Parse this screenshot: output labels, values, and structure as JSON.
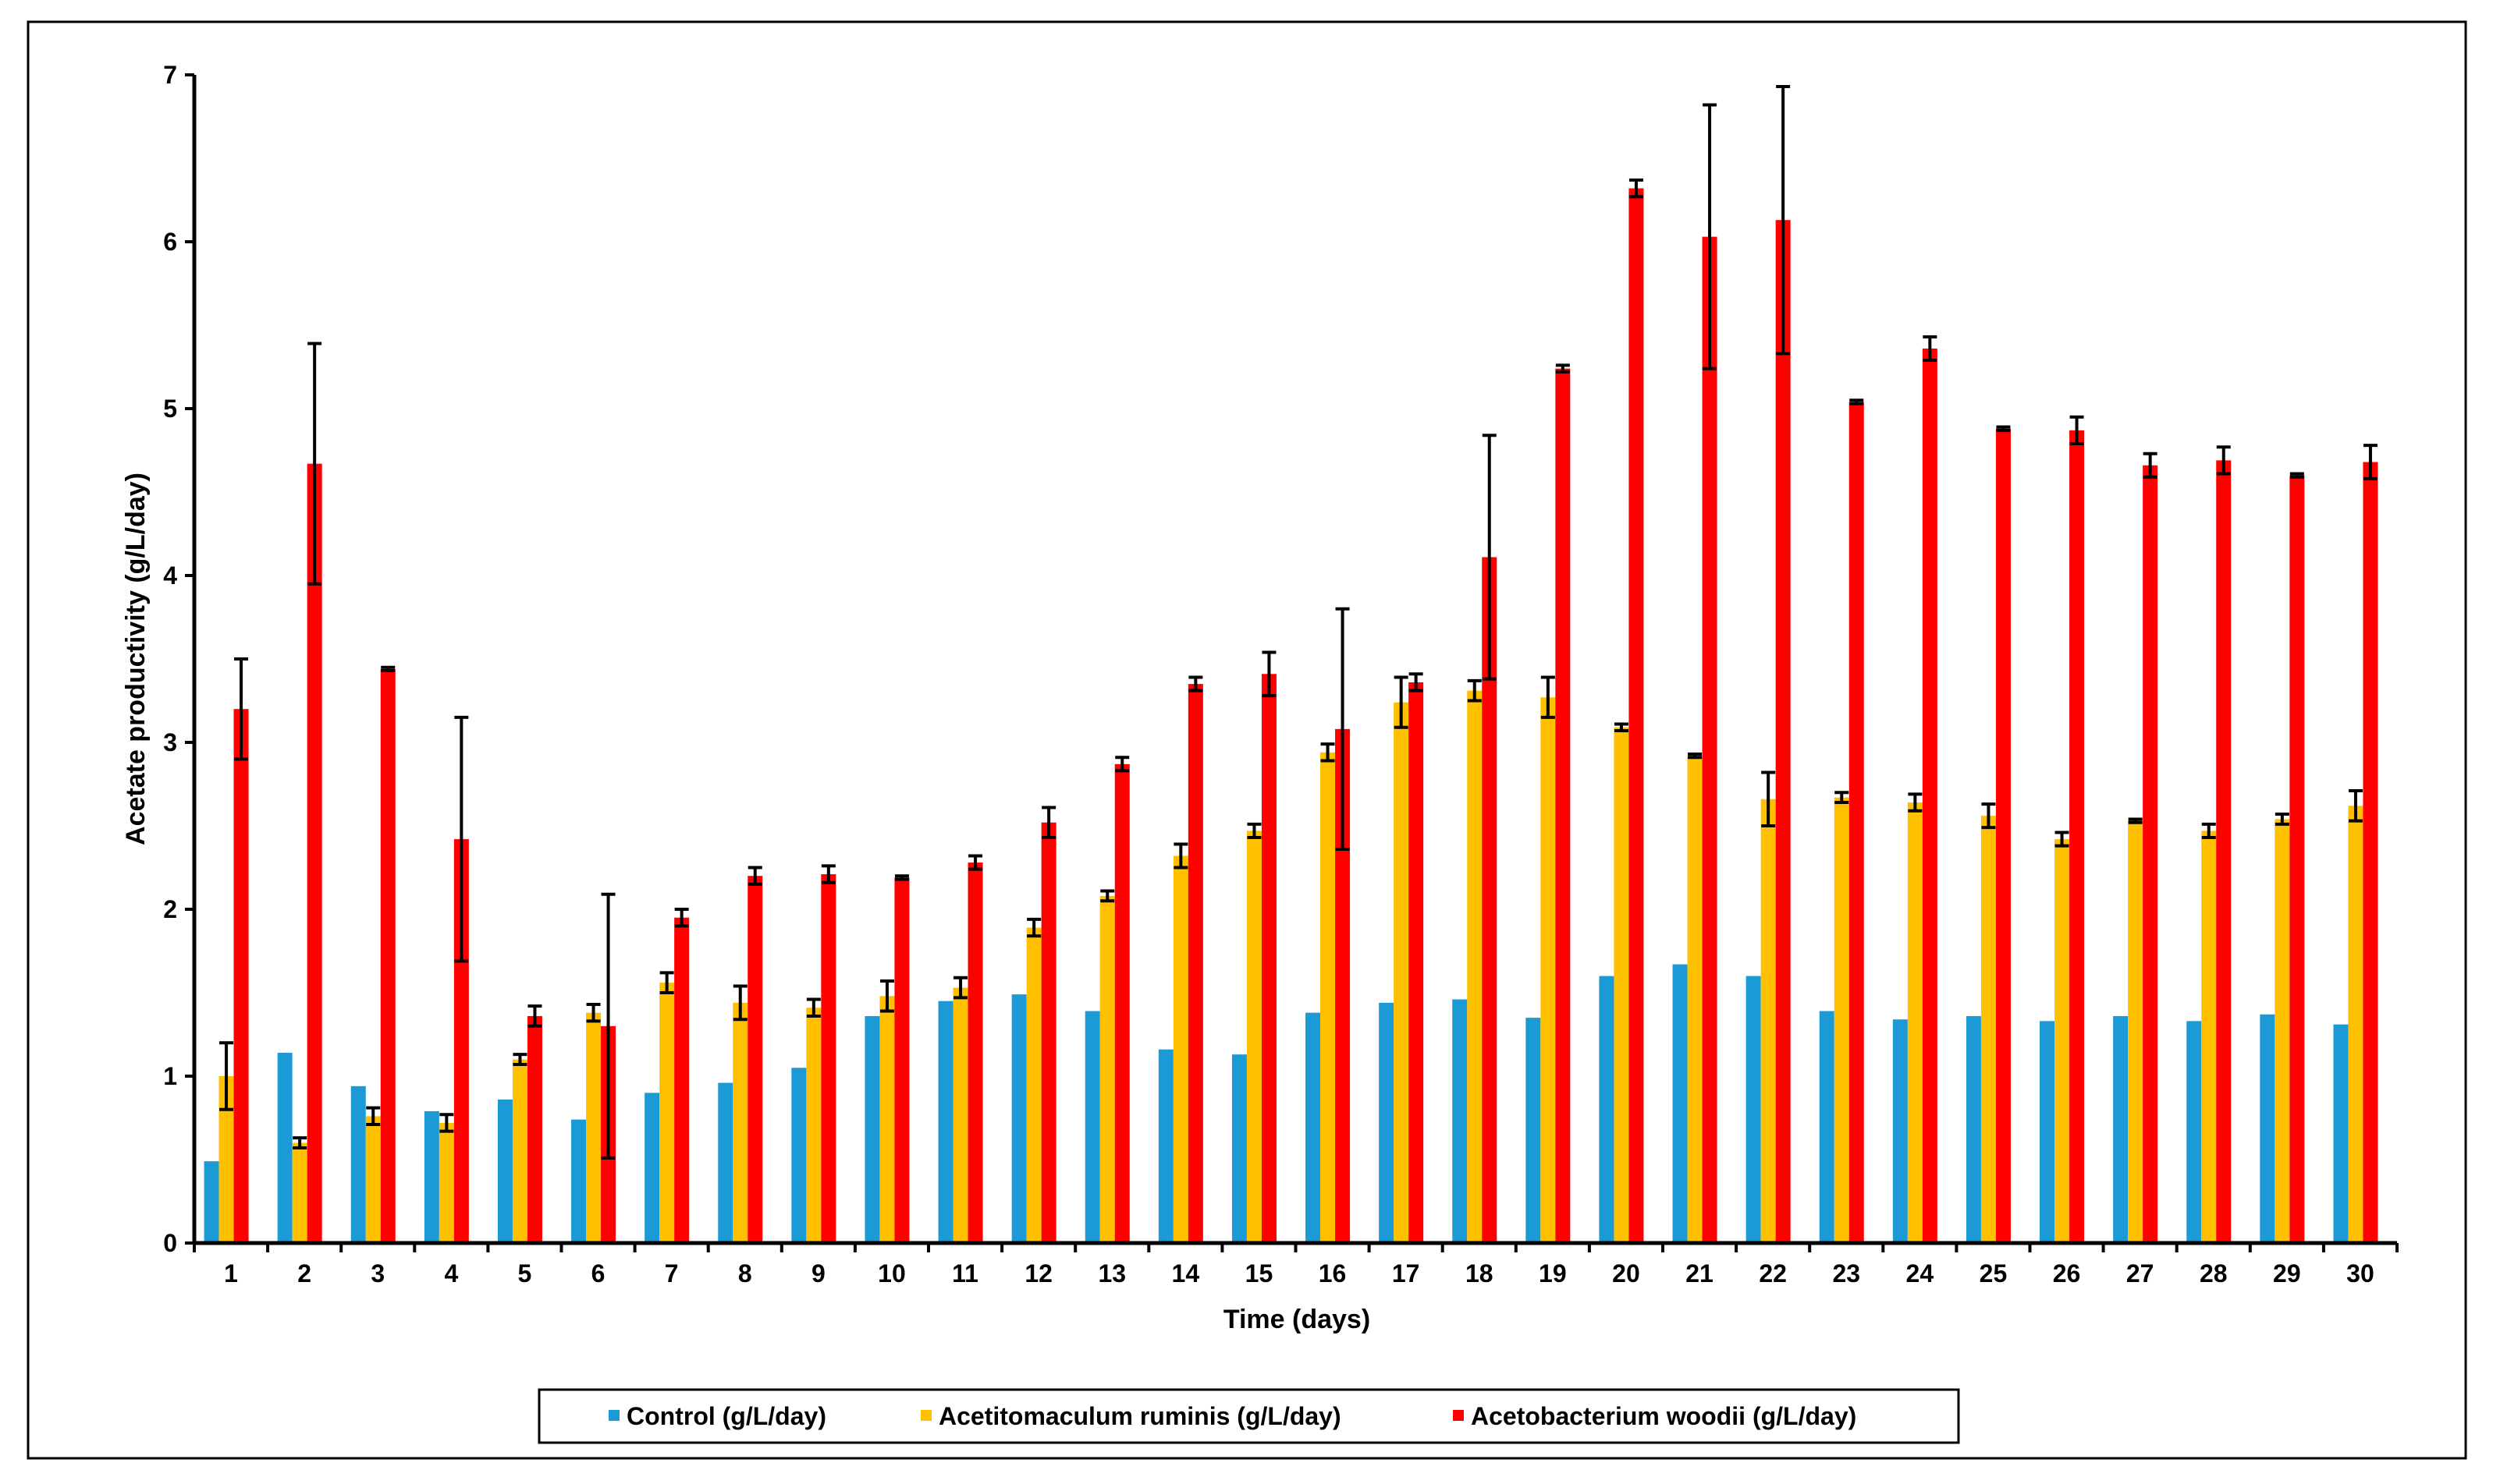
{
  "chart_data": {
    "type": "bar",
    "title": "",
    "xlabel": "Time (days)",
    "ylabel": "Acetate productivity (g/L/day)",
    "ylim": [
      0,
      7
    ],
    "yticks": [
      0,
      1,
      2,
      3,
      4,
      5,
      6,
      7
    ],
    "grid": false,
    "legend_position": "bottom",
    "categories": [
      "1",
      "2",
      "3",
      "4",
      "5",
      "6",
      "7",
      "8",
      "9",
      "10",
      "11",
      "12",
      "13",
      "14",
      "15",
      "16",
      "17",
      "18",
      "19",
      "20",
      "21",
      "22",
      "23",
      "24",
      "25",
      "26",
      "27",
      "28",
      "29",
      "30"
    ],
    "series": [
      {
        "name": "Control (g/L/day)",
        "color": "#1b9ad6",
        "values": [
          0.49,
          1.14,
          0.94,
          0.79,
          0.86,
          0.74,
          0.9,
          0.96,
          1.05,
          1.36,
          1.45,
          1.49,
          1.39,
          1.16,
          1.13,
          1.38,
          1.44,
          1.46,
          1.35,
          1.6,
          1.67,
          1.6,
          1.39,
          1.34,
          1.36,
          1.33,
          1.36,
          1.33,
          1.37,
          1.31
        ],
        "errors": null
      },
      {
        "name": "Acetitomaculum ruminis (g/L/day)",
        "color": "#ffc000",
        "values": [
          1.0,
          0.6,
          0.76,
          0.72,
          1.1,
          1.38,
          1.56,
          1.44,
          1.41,
          1.48,
          1.53,
          1.89,
          2.08,
          2.32,
          2.47,
          2.94,
          3.24,
          3.31,
          3.27,
          3.09,
          2.92,
          2.66,
          2.67,
          2.64,
          2.56,
          2.42,
          2.53,
          2.47,
          2.54,
          2.62
        ],
        "errors": [
          0.2,
          0.03,
          0.05,
          0.05,
          0.03,
          0.05,
          0.06,
          0.1,
          0.05,
          0.09,
          0.06,
          0.05,
          0.03,
          0.07,
          0.04,
          0.05,
          0.15,
          0.06,
          0.12,
          0.02,
          0.01,
          0.16,
          0.03,
          0.05,
          0.07,
          0.04,
          0.01,
          0.04,
          0.03,
          0.09
        ]
      },
      {
        "name": "Acetobacterium woodii (g/L/day)",
        "color": "#ff0000",
        "values": [
          3.2,
          4.67,
          3.44,
          2.42,
          1.36,
          1.3,
          1.95,
          2.2,
          2.21,
          2.19,
          2.28,
          2.52,
          2.87,
          3.35,
          3.41,
          3.08,
          3.36,
          4.11,
          5.24,
          6.32,
          6.03,
          6.13,
          5.04,
          5.36,
          4.88,
          4.87,
          4.66,
          4.69,
          4.6,
          4.68
        ],
        "errors": [
          0.3,
          0.72,
          0.01,
          0.73,
          0.06,
          0.79,
          0.05,
          0.05,
          0.05,
          0.01,
          0.04,
          0.09,
          0.04,
          0.04,
          0.13,
          0.72,
          0.05,
          0.73,
          0.02,
          0.05,
          0.79,
          0.8,
          0.01,
          0.07,
          0.01,
          0.08,
          0.07,
          0.08,
          0.01,
          0.1
        ]
      }
    ]
  }
}
